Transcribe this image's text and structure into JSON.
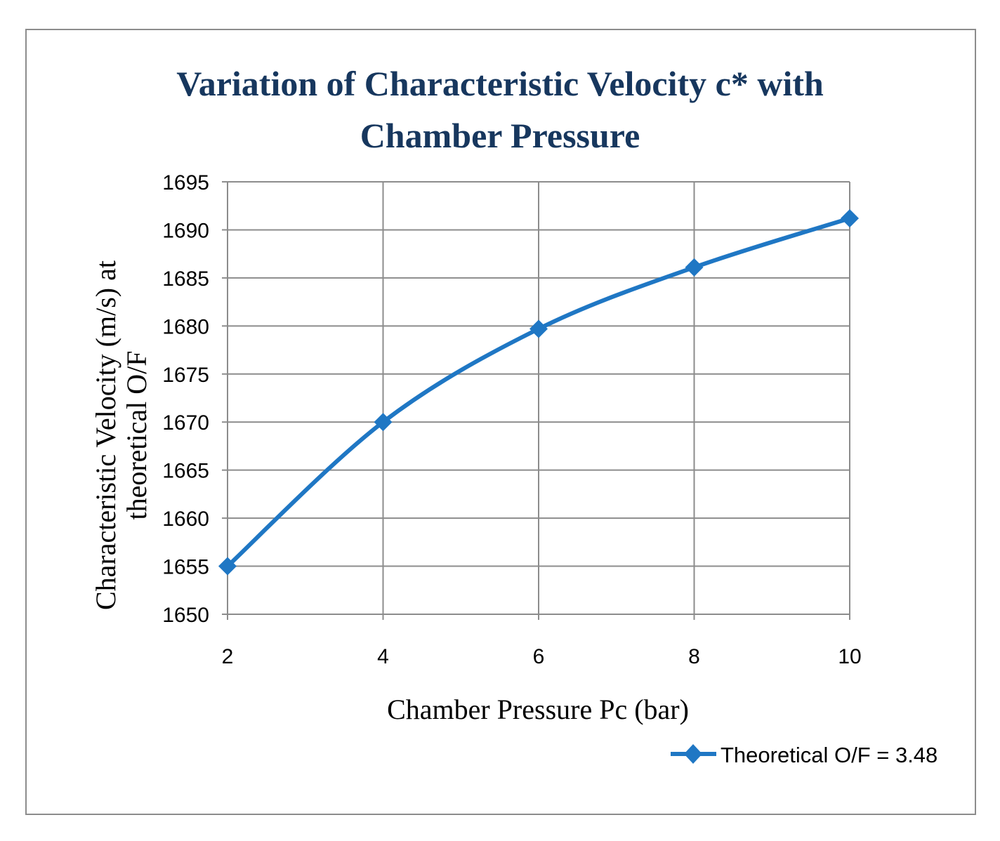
{
  "chart_data": {
    "type": "line",
    "title_lines": [
      "Variation  of Characteristic Velocity c* with",
      "Chamber Pressure"
    ],
    "xlabel": "Chamber Pressure Pc (bar)",
    "ylabel_lines": [
      "Characteristic  Velocity  (m/s) at",
      "theoretical O/F"
    ],
    "x": [
      2,
      4,
      6,
      8,
      10
    ],
    "x_ticks": [
      "2",
      "4",
      "6",
      "8",
      "10"
    ],
    "y_ticks": [
      "1650",
      "1655",
      "1660",
      "1665",
      "1670",
      "1675",
      "1680",
      "1685",
      "1690",
      "1695"
    ],
    "ylim": [
      1650,
      1695
    ],
    "xlim": [
      2,
      10
    ],
    "grid": true,
    "legend_position": "bottom-right",
    "series": [
      {
        "name": "Theoretical O/F = 3.48",
        "values": [
          1655,
          1670,
          1679.7,
          1686.1,
          1691.2
        ],
        "color": "#1f77c4",
        "marker": "diamond"
      }
    ]
  }
}
